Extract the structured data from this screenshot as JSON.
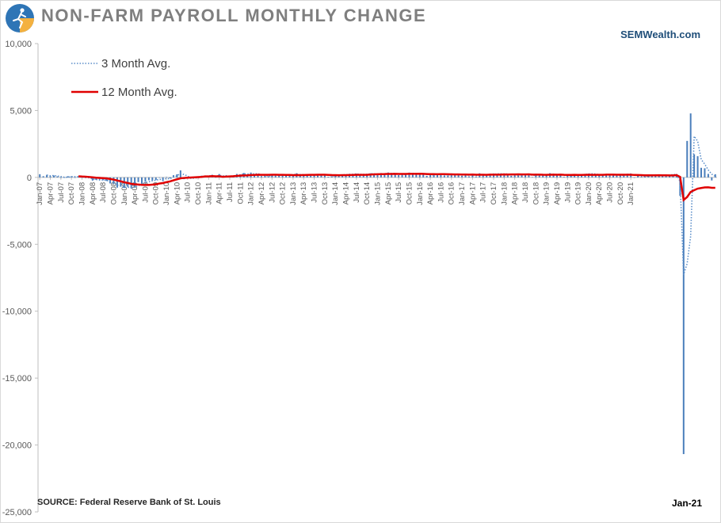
{
  "header": {
    "title": "NON-FARM PAYROLL MONTHLY CHANGE",
    "brand": "SEMWealth.com"
  },
  "footer": {
    "source": "SOURCE:  Federal Reserve Bank of St. Louis",
    "as_of": "Jan-21"
  },
  "colors": {
    "bars": "#4a7ebb",
    "avg3": "#5b8ec9",
    "avg12": "#e00000",
    "axis": "#bfbfbf",
    "logo_blue": "#2e75b6",
    "logo_orange": "#f4b13f"
  },
  "logo_icon": "runner-logo-icon",
  "chart_data": {
    "type": "bar",
    "title": "NON-FARM PAYROLL MONTHLY CHANGE",
    "ylim": [
      -25000,
      10000
    ],
    "yticks": [
      10000,
      5000,
      0,
      -5000,
      -10000,
      -15000,
      -20000,
      -25000
    ],
    "ytick_labels": [
      "10,000",
      "5,000",
      "0",
      "-5,000",
      "-10,000",
      "-15,000",
      "-20,000",
      "-25,000"
    ],
    "x_start": "Jan-07",
    "x_tick_labels": [
      "Jan-07",
      "Apr-07",
      "Jul-07",
      "Oct-07",
      "Jan-08",
      "Apr-08",
      "Jul-08",
      "Oct-08",
      "Jan-09",
      "Apr-09",
      "Jul-09",
      "Oct-09",
      "Jan-10",
      "Apr-10",
      "Jul-10",
      "Oct-10",
      "Jan-11",
      "Apr-11",
      "Jul-11",
      "Oct-11",
      "Jan-12",
      "Apr-12",
      "Jul-12",
      "Oct-12",
      "Jan-13",
      "Apr-13",
      "Jul-13",
      "Oct-13",
      "Jan-14",
      "Apr-14",
      "Jul-14",
      "Oct-14",
      "Jan-15",
      "Apr-15",
      "Jul-15",
      "Oct-15",
      "Jan-16",
      "Apr-16",
      "Jul-16",
      "Oct-16",
      "Jan-17",
      "Apr-17",
      "Jul-17",
      "Oct-17",
      "Jan-18",
      "Apr-18",
      "Jul-18",
      "Oct-18",
      "Jan-19",
      "Apr-19",
      "Jul-19",
      "Oct-19",
      "Jan-20",
      "Apr-20",
      "Jul-20",
      "Oct-20",
      "Jan-21"
    ],
    "grid": false,
    "legend_placement": "top-left",
    "series": [
      {
        "name": "",
        "kind": "bar",
        "values": [
          238,
          90,
          189,
          78,
          144,
          75,
          -34,
          -20,
          88,
          84,
          -7,
          71,
          10,
          -50,
          -49,
          -240,
          -186,
          -162,
          -213,
          -267,
          -450,
          -474,
          -766,
          -694,
          -793,
          -702,
          -823,
          -687,
          -349,
          -470,
          -329,
          -212,
          -219,
          -200,
          -7,
          -279,
          28,
          -69,
          163,
          232,
          522,
          -133,
          -70,
          -34,
          -52,
          -2,
          128,
          144,
          34,
          196,
          14,
          251,
          54,
          84,
          94,
          110,
          257,
          225,
          328,
          183,
          360,
          226,
          243,
          96,
          110,
          88,
          160,
          150,
          161,
          225,
          203,
          214,
          190,
          311,
          135,
          192,
          218,
          125,
          207,
          184,
          189,
          234,
          49,
          79,
          144,
          222,
          189,
          211,
          264,
          225,
          279,
          177,
          229,
          269,
          303,
          227,
          200,
          326,
          256,
          361,
          253,
          288,
          168,
          212,
          248,
          358,
          300,
          206,
          271,
          270,
          115,
          210,
          248,
          241,
          275,
          151,
          148,
          294,
          217,
          241,
          123,
          280,
          81,
          245,
          47,
          307,
          218,
          124,
          272,
          294,
          220,
          283,
          257,
          227,
          121,
          242,
          149,
          242,
          223,
          214,
          26,
          275,
          201,
          169,
          222,
          314,
          182,
          148,
          263,
          43,
          181,
          141,
          154,
          193,
          203,
          263,
          279,
          244,
          219,
          150,
          204,
          208,
          181,
          157,
          129,
          159,
          220,
          269,
          269,
          1,
          166,
          38,
          71,
          193,
          159,
          207,
          177,
          118,
          205,
          200,
          214,
          251,
          -1373,
          -20679,
          2725,
          4781,
          1726,
          1583,
          716,
          680,
          264,
          -227,
          233
        ]
      },
      {
        "name": "3 Month Avg.",
        "kind": "line",
        "style": "dotted"
      },
      {
        "name": "12 Month Avg.",
        "kind": "line",
        "style": "solid"
      }
    ]
  }
}
